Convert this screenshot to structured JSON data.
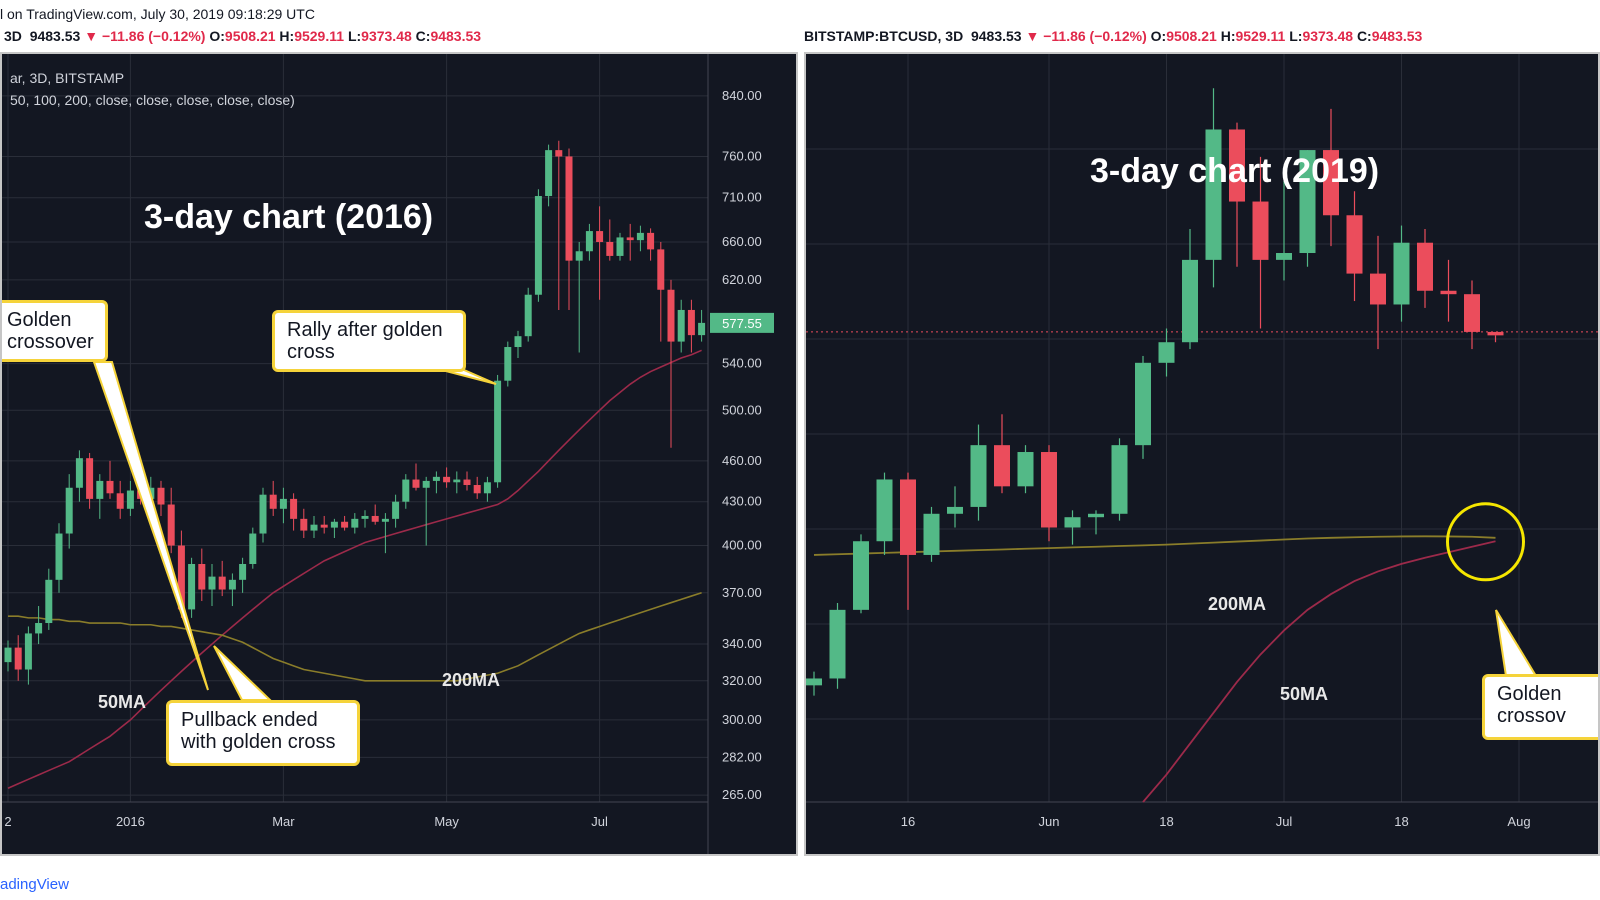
{
  "header": {
    "published_line": "l on TradingView.com, July 30, 2019 09:18:29 UTC",
    "footer_brand": "adingView"
  },
  "colors": {
    "background": "#131722",
    "up_candle": "#53b987",
    "down_candle": "#eb4d5c",
    "ma50": "#9c2a4a",
    "ma200": "#8a7d2a",
    "callout_border": "#f5d33a",
    "grid": "#2a2e39",
    "price_tag": "#53b987"
  },
  "left_chart": {
    "legend": {
      "symbol": "3D",
      "price": "9483.53",
      "change": "−11.86 (−0.12%)",
      "o_label": "O:",
      "o_value": "9508.21",
      "h_label": "H:",
      "h_value": "9529.11",
      "l_label": "L:",
      "l_value": "9373.48",
      "c_label": "C:",
      "c_value": "9483.53"
    },
    "symbol_line": "ar, 3D, BITSTAMP",
    "indicator_line": "50, 100, 200, close, close, close, close, close)",
    "title": "3-day chart (2016)",
    "callouts": {
      "golden": "Golden\ncrossover",
      "rally": "Rally after golden\ncross",
      "pullback": "Pullback ended\nwith golden cross"
    },
    "ma_labels": {
      "ma50": "50MA",
      "ma200": "200MA"
    },
    "last_price_tag": "577.55"
  },
  "right_chart": {
    "legend": {
      "symbol": "BITSTAMP:BTCUSD, 3D",
      "price": "9483.53",
      "change": "−11.86 (−0.12%)",
      "o_label": "O:",
      "o_value": "9508.21",
      "h_label": "H:",
      "h_value": "9529.11",
      "l_label": "L:",
      "l_value": "9373.48",
      "c_label": "C:",
      "c_value": "9483.53"
    },
    "title": "3-day chart (2019)",
    "callouts": {
      "golden": "Golden\ncrossov"
    },
    "ma_labels": {
      "ma50": "50MA",
      "ma200": "200MA"
    }
  },
  "chart_data": [
    {
      "type": "candlestick",
      "title": "3-day chart (2016)",
      "y_scale": "log",
      "y_ticks": [
        "840.00",
        "760.00",
        "710.00",
        "660.00",
        "620.00",
        "540.00",
        "500.00",
        "460.00",
        "430.00",
        "400.00",
        "370.00",
        "340.00",
        "320.00",
        "300.00",
        "282.00",
        "265.00"
      ],
      "ylim": [
        262,
        900
      ],
      "x_ticks": [
        "2",
        "2016",
        "Mar",
        "May",
        "Jul"
      ],
      "candles": [
        [
          330,
          342,
          325,
          338
        ],
        [
          338,
          345,
          320,
          326
        ],
        [
          326,
          350,
          318,
          346
        ],
        [
          346,
          362,
          340,
          352
        ],
        [
          352,
          385,
          348,
          378
        ],
        [
          378,
          415,
          370,
          408
        ],
        [
          408,
          450,
          398,
          440
        ],
        [
          440,
          468,
          430,
          462
        ],
        [
          462,
          466,
          425,
          432
        ],
        [
          432,
          450,
          418,
          445
        ],
        [
          445,
          460,
          432,
          436
        ],
        [
          436,
          445,
          418,
          425
        ],
        [
          425,
          445,
          420,
          438
        ],
        [
          438,
          445,
          428,
          432
        ],
        [
          432,
          448,
          425,
          440
        ],
        [
          440,
          445,
          420,
          428
        ],
        [
          428,
          440,
          395,
          400
        ],
        [
          400,
          410,
          355,
          360
        ],
        [
          360,
          392,
          355,
          388
        ],
        [
          388,
          398,
          365,
          372
        ],
        [
          372,
          388,
          362,
          380
        ],
        [
          380,
          390,
          368,
          372
        ],
        [
          372,
          382,
          362,
          378
        ],
        [
          378,
          392,
          370,
          388
        ],
        [
          388,
          412,
          385,
          408
        ],
        [
          408,
          440,
          402,
          435
        ],
        [
          435,
          445,
          420,
          425
        ],
        [
          425,
          440,
          415,
          432
        ],
        [
          432,
          436,
          410,
          418
        ],
        [
          418,
          425,
          405,
          410
        ],
        [
          410,
          420,
          405,
          414
        ],
        [
          414,
          420,
          408,
          412
        ],
        [
          412,
          418,
          405,
          416
        ],
        [
          416,
          420,
          410,
          412
        ],
        [
          412,
          422,
          408,
          418
        ],
        [
          418,
          424,
          412,
          420
        ],
        [
          420,
          428,
          414,
          416
        ],
        [
          416,
          422,
          395,
          418
        ],
        [
          418,
          435,
          412,
          430
        ],
        [
          430,
          450,
          425,
          446
        ],
        [
          446,
          458,
          438,
          440
        ],
        [
          440,
          448,
          400,
          445
        ],
        [
          445,
          452,
          436,
          448
        ],
        [
          448,
          455,
          440,
          444
        ],
        [
          444,
          452,
          436,
          446
        ],
        [
          446,
          452,
          438,
          442
        ],
        [
          442,
          448,
          432,
          436
        ],
        [
          436,
          448,
          430,
          444
        ],
        [
          444,
          530,
          440,
          525
        ],
        [
          525,
          560,
          520,
          555
        ],
        [
          555,
          570,
          545,
          565
        ],
        [
          565,
          612,
          560,
          605
        ],
        [
          605,
          720,
          598,
          712
        ],
        [
          712,
          775,
          700,
          768
        ],
        [
          768,
          780,
          590,
          760
        ],
        [
          760,
          770,
          590,
          640
        ],
        [
          640,
          660,
          550,
          650
        ],
        [
          650,
          680,
          640,
          672
        ],
        [
          672,
          700,
          600,
          660
        ],
        [
          660,
          685,
          640,
          645
        ],
        [
          645,
          670,
          640,
          665
        ],
        [
          665,
          680,
          640,
          662
        ],
        [
          662,
          678,
          650,
          670
        ],
        [
          670,
          675,
          640,
          652
        ],
        [
          652,
          660,
          560,
          610
        ],
        [
          610,
          620,
          470,
          560
        ],
        [
          560,
          600,
          550,
          590
        ],
        [
          590,
          600,
          550,
          566
        ],
        [
          566,
          590,
          560,
          577.55
        ]
      ],
      "series": [
        {
          "name": "50MA",
          "values": [
            268,
            270,
            272,
            274,
            276,
            278,
            280,
            283,
            286,
            289,
            292,
            296,
            300,
            305,
            310,
            315,
            320,
            325,
            330,
            335,
            340,
            345,
            350,
            355,
            360,
            365,
            370,
            374,
            378,
            382,
            386,
            390,
            393,
            396,
            399,
            402,
            404,
            406,
            408,
            410,
            412,
            414,
            416,
            418,
            420,
            422,
            424,
            426,
            428,
            432,
            438,
            445,
            452,
            460,
            468,
            476,
            484,
            492,
            500,
            508,
            515,
            522,
            528,
            533,
            537,
            541,
            545,
            548,
            552
          ]
        },
        {
          "name": "200MA",
          "values": [
            356,
            356,
            355,
            355,
            354,
            354,
            353,
            353,
            352,
            352,
            352,
            352,
            351,
            351,
            351,
            350,
            350,
            349,
            348,
            347,
            346,
            345,
            343,
            341,
            338,
            335,
            332,
            330,
            328,
            326,
            325,
            324,
            323,
            322,
            321,
            320,
            320,
            320,
            320,
            320,
            320,
            320,
            320,
            320,
            320,
            321,
            322,
            323,
            324,
            326,
            328,
            331,
            334,
            337,
            340,
            343,
            346,
            348,
            350,
            352,
            354,
            356,
            358,
            360,
            362,
            364,
            366,
            368,
            370
          ]
        }
      ],
      "annotations": [
        "Golden crossover",
        "Rally after golden cross",
        "Pullback ended with golden cross",
        "50MA",
        "200MA"
      ],
      "last_price": 577.55
    },
    {
      "type": "candlestick",
      "title": "3-day chart (2019)",
      "y_scale": "linear",
      "ylim": [
        3400,
        14300
      ],
      "y_ticks": [],
      "x_ticks": [
        "16",
        "Jun",
        "18",
        "Jul",
        "18",
        "Aug"
      ],
      "candles": [
        [
          5100,
          5300,
          4950,
          5200
        ],
        [
          5200,
          6300,
          5050,
          6200
        ],
        [
          6200,
          7300,
          6150,
          7200
        ],
        [
          7200,
          8200,
          7000,
          8100
        ],
        [
          8100,
          8200,
          6200,
          7000
        ],
        [
          7000,
          7700,
          6900,
          7600
        ],
        [
          7600,
          8000,
          7400,
          7700
        ],
        [
          7700,
          8900,
          7500,
          8600
        ],
        [
          8600,
          9050,
          7900,
          8000
        ],
        [
          8000,
          8600,
          7900,
          8500
        ],
        [
          8500,
          8600,
          7200,
          7400
        ],
        [
          7400,
          7650,
          7150,
          7550
        ],
        [
          7550,
          7650,
          7300,
          7600
        ],
        [
          7600,
          8700,
          7500,
          8600
        ],
        [
          8600,
          9900,
          8400,
          9800
        ],
        [
          9800,
          10300,
          9600,
          10100
        ],
        [
          10100,
          11750,
          10000,
          11300
        ],
        [
          11300,
          13800,
          10900,
          13200
        ],
        [
          13200,
          13300,
          11200,
          12150
        ],
        [
          12150,
          12800,
          10300,
          11300
        ],
        [
          11300,
          12450,
          11000,
          11400
        ],
        [
          11400,
          12900,
          11200,
          12900
        ],
        [
          12900,
          13500,
          11500,
          11950
        ],
        [
          11950,
          12300,
          10700,
          11100
        ],
        [
          11100,
          11650,
          10000,
          10650
        ],
        [
          10650,
          11800,
          10400,
          11550
        ],
        [
          11550,
          11750,
          10600,
          10850
        ],
        [
          10850,
          11300,
          10400,
          10800
        ],
        [
          10800,
          11000,
          10000,
          10250
        ],
        [
          10250,
          10200,
          10100,
          10200
        ]
      ],
      "series": [
        {
          "name": "200MA",
          "values": [
            7000,
            7010,
            7020,
            7030,
            7040,
            7050,
            7060,
            7070,
            7080,
            7090,
            7100,
            7110,
            7120,
            7130,
            7140,
            7150,
            7165,
            7180,
            7195,
            7210,
            7225,
            7240,
            7250,
            7258,
            7265,
            7270,
            7272,
            7270,
            7265,
            7250
          ]
        },
        {
          "name": "50MA",
          "values": [
            null,
            null,
            null,
            null,
            null,
            null,
            null,
            null,
            null,
            null,
            null,
            null,
            null,
            null,
            3400,
            3800,
            4250,
            4700,
            5150,
            5550,
            5900,
            6200,
            6430,
            6620,
            6760,
            6870,
            6960,
            7040,
            7120,
            7200
          ]
        }
      ],
      "reference_line": 10250,
      "annotations": [
        "200MA",
        "50MA",
        "Golden crossover"
      ]
    }
  ]
}
